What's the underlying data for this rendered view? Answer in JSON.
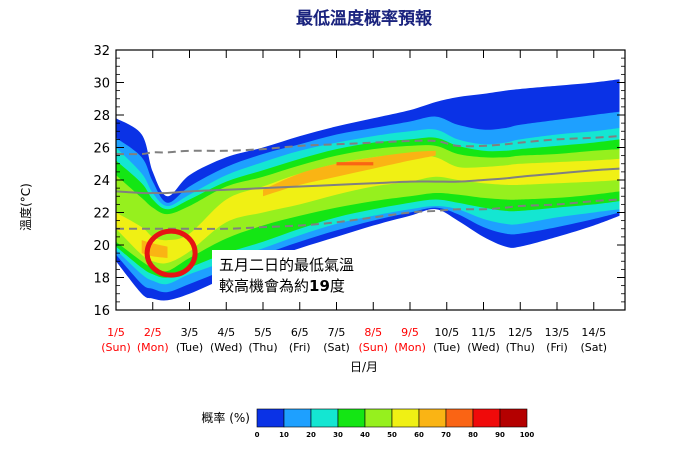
{
  "chart_data": {
    "type": "area",
    "title": "最低溫度概率預報",
    "xlabel": "日/月",
    "ylabel": "溫度(°C)",
    "ylim": [
      16,
      32
    ],
    "yticks": [
      16,
      18,
      20,
      22,
      24,
      26,
      28,
      30,
      32
    ],
    "categories": [
      {
        "date": "1/5",
        "day": "(Sun)",
        "color": "#ff0000"
      },
      {
        "date": "2/5",
        "day": "(Mon)",
        "color": "#ff0000"
      },
      {
        "date": "3/5",
        "day": "(Tue)",
        "color": "#000000"
      },
      {
        "date": "4/5",
        "day": "(Wed)",
        "color": "#000000"
      },
      {
        "date": "5/5",
        "day": "(Thu)",
        "color": "#000000"
      },
      {
        "date": "6/5",
        "day": "(Fri)",
        "color": "#000000"
      },
      {
        "date": "7/5",
        "day": "(Sat)",
        "color": "#000000"
      },
      {
        "date": "8/5",
        "day": "(Sun)",
        "color": "#ff0000"
      },
      {
        "date": "9/5",
        "day": "(Mon)",
        "color": "#ff0000"
      },
      {
        "date": "10/5",
        "day": "(Tue)",
        "color": "#000000"
      },
      {
        "date": "11/5",
        "day": "(Wed)",
        "color": "#000000"
      },
      {
        "date": "12/5",
        "day": "(Thu)",
        "color": "#000000"
      },
      {
        "date": "13/5",
        "day": "(Fri)",
        "color": "#000000"
      },
      {
        "date": "14/5",
        "day": "(Sat)",
        "color": "#000000"
      }
    ],
    "x": [
      1,
      1.7,
      2,
      2.4,
      3,
      4,
      5,
      6,
      7,
      8,
      9,
      9.7,
      10.3,
      11,
      11.6,
      12,
      13,
      14,
      14.7
    ],
    "bands": [
      {
        "pct": 0,
        "color": "#0a32e6",
        "low": [
          19.0,
          17.0,
          16.7,
          16.6,
          17.0,
          18.0,
          19.0,
          19.8,
          20.5,
          21.2,
          21.8,
          22.2,
          21.5,
          20.5,
          19.9,
          19.9,
          20.5,
          21.2,
          21.8
        ],
        "high": [
          27.8,
          26.8,
          24.5,
          23.0,
          24.3,
          25.4,
          26.0,
          26.7,
          27.3,
          27.8,
          28.3,
          28.8,
          29.1,
          29.3,
          29.5,
          29.6,
          29.8,
          30.0,
          30.2
        ]
      },
      {
        "pct": 10,
        "color": "#1ea0ff",
        "low": [
          19.4,
          17.6,
          17.3,
          17.1,
          17.6,
          18.5,
          19.4,
          20.2,
          20.9,
          21.5,
          22.0,
          22.3,
          21.9,
          21.1,
          20.7,
          20.7,
          21.1,
          21.6,
          22.0
        ],
        "high": [
          26.6,
          25.4,
          23.9,
          22.6,
          23.6,
          24.8,
          25.6,
          26.2,
          26.8,
          27.2,
          27.6,
          27.9,
          27.4,
          27.1,
          27.2,
          27.4,
          27.7,
          28.0,
          28.2
        ]
      },
      {
        "pct": 20,
        "color": "#14e6d2",
        "low": [
          19.7,
          18.2,
          17.8,
          17.6,
          18.2,
          19.0,
          19.8,
          20.6,
          21.3,
          21.8,
          22.2,
          22.4,
          22.2,
          21.6,
          21.3,
          21.3,
          21.7,
          22.0,
          22.2
        ],
        "high": [
          26.0,
          24.4,
          23.2,
          22.4,
          23.1,
          24.3,
          25.1,
          25.8,
          26.3,
          26.7,
          27.0,
          27.1,
          26.5,
          26.2,
          26.3,
          26.5,
          26.8,
          27.0,
          27.2
        ]
      },
      {
        "pct": 30,
        "color": "#14e614",
        "low": [
          19.9,
          18.6,
          18.2,
          18.0,
          18.6,
          19.5,
          20.2,
          21.0,
          21.7,
          22.2,
          22.6,
          22.8,
          22.6,
          22.3,
          22.1,
          22.1,
          22.3,
          22.5,
          22.7
        ],
        "high": [
          25.2,
          23.8,
          22.8,
          22.2,
          22.8,
          23.9,
          24.6,
          25.3,
          25.9,
          26.3,
          26.5,
          26.6,
          26.1,
          25.8,
          25.8,
          25.9,
          26.1,
          26.3,
          26.5
        ]
      },
      {
        "pct": 40,
        "color": "#96f01e",
        "low": [
          20.2,
          19.0,
          18.6,
          18.4,
          19.2,
          20.4,
          21.2,
          21.8,
          22.3,
          22.7,
          23.0,
          23.2,
          23.1,
          22.9,
          22.8,
          22.8,
          22.9,
          23.1,
          23.3
        ],
        "high": [
          24.3,
          22.9,
          22.3,
          21.9,
          22.4,
          23.6,
          24.2,
          24.9,
          25.5,
          25.9,
          26.1,
          26.1,
          25.6,
          25.4,
          25.4,
          25.5,
          25.6,
          25.8,
          25.9
        ]
      },
      {
        "pct": 50,
        "color": "#f0f014",
        "low": [
          21.0,
          19.4,
          19.0,
          18.9,
          19.6,
          21.4,
          22.0,
          22.5,
          23.1,
          23.6,
          23.9,
          24.2,
          24.0,
          23.8,
          23.7,
          23.7,
          23.8,
          23.9,
          24.0
        ],
        "high": [
          22.0,
          21.1,
          20.5,
          20.3,
          20.7,
          22.8,
          23.6,
          24.4,
          25.0,
          25.4,
          25.6,
          25.4,
          24.8,
          24.8,
          24.9,
          25.0,
          25.1,
          25.2,
          25.3
        ]
      },
      {
        "pct": 60,
        "color": "#fab414",
        "low": [
          null,
          19.5,
          19.3,
          19.2,
          null,
          null,
          23.0,
          23.7,
          24.2,
          24.7,
          25.2,
          25.5,
          null,
          null,
          null,
          null,
          null,
          null,
          null
        ],
        "high": [
          null,
          20.3,
          20.1,
          19.9,
          null,
          null,
          23.4,
          24.4,
          25.0,
          25.4,
          25.7,
          25.8,
          null,
          null,
          null,
          null,
          null,
          null,
          null
        ]
      },
      {
        "pct": 70,
        "color": "#fa6414",
        "low": [
          null,
          null,
          null,
          null,
          null,
          null,
          null,
          null,
          24.9,
          24.9,
          null,
          null,
          null,
          null,
          null,
          null,
          null,
          null,
          null
        ],
        "high": [
          null,
          null,
          null,
          null,
          null,
          null,
          null,
          null,
          25.1,
          25.1,
          null,
          null,
          null,
          null,
          null,
          null,
          null,
          null,
          null
        ]
      }
    ],
    "lines": [
      {
        "style": "dashed",
        "color": "#808080",
        "y": [
          25.6,
          25.6,
          25.7,
          25.7,
          25.8,
          25.8,
          25.9,
          26.1,
          26.2,
          26.3,
          26.4,
          26.4,
          26.1,
          26.1,
          26.2,
          26.3,
          26.5,
          26.6,
          26.7
        ]
      },
      {
        "style": "solid",
        "color": "#808080",
        "y": [
          23.3,
          23.2,
          23.2,
          23.2,
          23.3,
          23.4,
          23.5,
          23.6,
          23.7,
          23.8,
          23.9,
          23.9,
          23.9,
          24.0,
          24.1,
          24.2,
          24.4,
          24.6,
          24.7
        ]
      },
      {
        "style": "dashed",
        "color": "#808080",
        "y": [
          21.0,
          21.0,
          21.0,
          21.0,
          21.0,
          21.0,
          21.1,
          21.2,
          21.4,
          21.7,
          22.0,
          22.1,
          22.2,
          22.2,
          22.3,
          22.4,
          22.5,
          22.7,
          22.8
        ]
      }
    ],
    "highlight": {
      "x": 2.5,
      "y": 19.5,
      "color": "#e61414"
    },
    "annotation": {
      "line1": "五月二日的最低氣溫",
      "line2_prefix": "較高機會為約",
      "line2_value": "19",
      "line2_suffix": "度"
    },
    "legend": {
      "label": "概率 (%)",
      "ticks": [
        "0",
        "10",
        "20",
        "30",
        "40",
        "50",
        "60",
        "70",
        "80",
        "90",
        "100"
      ],
      "colors": [
        "#0a32e6",
        "#1ea0ff",
        "#14e6d2",
        "#14e614",
        "#96f01e",
        "#f0f014",
        "#fab414",
        "#fa6414",
        "#f00a0a",
        "#b40000"
      ]
    }
  }
}
